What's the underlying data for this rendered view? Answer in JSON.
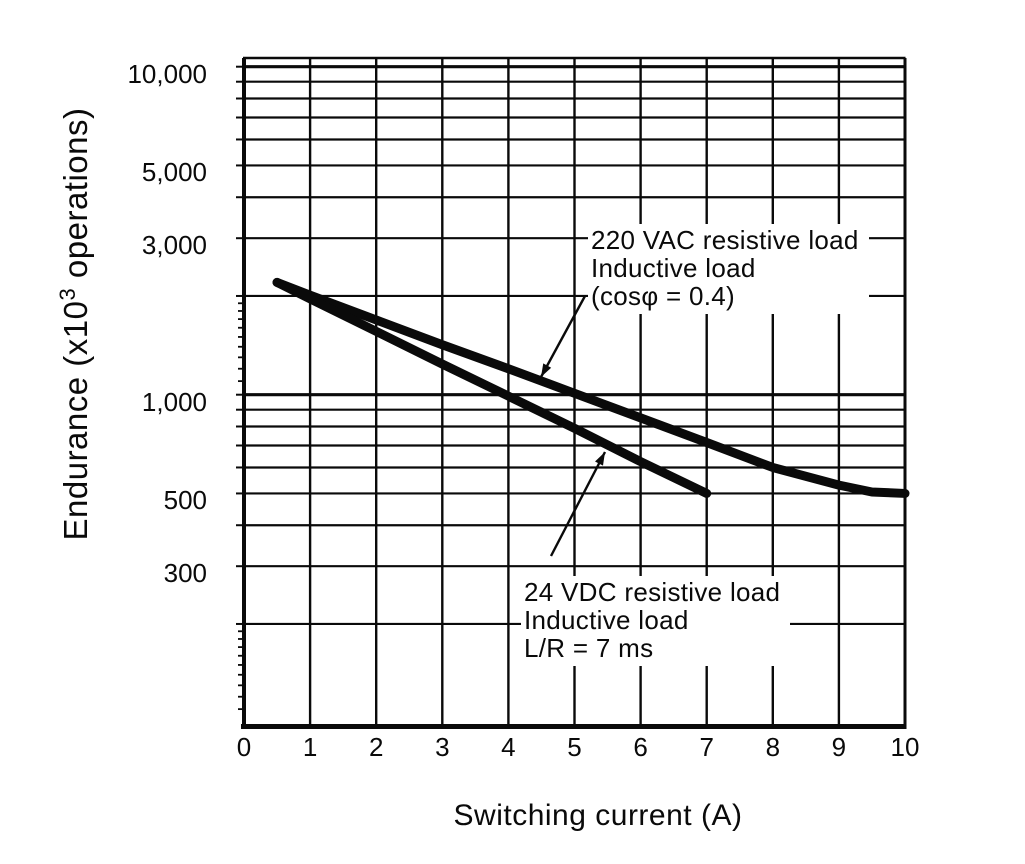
{
  "chart_data": {
    "type": "line",
    "title": "",
    "xlabel": "Switching current (A)",
    "ylabel": "Endurance (x10³ operations)",
    "ylabel_parts": {
      "pre": "Endurance (x10",
      "sup": "3",
      "post": " operations)"
    },
    "x_scale": "linear",
    "y_scale": "log",
    "xlim": [
      0,
      10
    ],
    "ylim": [
      100,
      10000
    ],
    "grid": "full grid, logarithmic minor horizontals, verticals every 1 A",
    "x_ticks": [
      {
        "value": 0,
        "label": "0"
      },
      {
        "value": 1,
        "label": "1"
      },
      {
        "value": 2,
        "label": "2"
      },
      {
        "value": 3,
        "label": "3"
      },
      {
        "value": 4,
        "label": "4"
      },
      {
        "value": 5,
        "label": "5"
      },
      {
        "value": 6,
        "label": "6"
      },
      {
        "value": 7,
        "label": "7"
      },
      {
        "value": 8,
        "label": "8"
      },
      {
        "value": 9,
        "label": "9"
      },
      {
        "value": 10,
        "label": "10"
      }
    ],
    "y_ticks": [
      {
        "value": 10000,
        "label": "10,000"
      },
      {
        "value": 5000,
        "label": "5,000"
      },
      {
        "value": 3000,
        "label": "3,000"
      },
      {
        "value": 1000,
        "label": "1,000"
      },
      {
        "value": 500,
        "label": "500"
      },
      {
        "value": 300,
        "label": "300"
      }
    ],
    "series": [
      {
        "name": "220 VAC resistive load / Inductive load (cosφ = 0.4)",
        "color": "#0a0a0a",
        "points": [
          [
            0.5,
            2200
          ],
          [
            1,
            2010
          ],
          [
            2,
            1690
          ],
          [
            3,
            1420
          ],
          [
            4,
            1200
          ],
          [
            5,
            1010
          ],
          [
            6,
            850
          ],
          [
            7,
            715
          ],
          [
            8,
            600
          ],
          [
            9,
            530
          ],
          [
            9.5,
            505
          ],
          [
            10,
            500
          ]
        ]
      },
      {
        "name": "24 VDC resistive load / Inductive load L/R = 7 ms",
        "color": "#0a0a0a",
        "points": [
          [
            0.5,
            2200
          ],
          [
            1,
            1960
          ],
          [
            2,
            1560
          ],
          [
            3,
            1240
          ],
          [
            4,
            990
          ],
          [
            5,
            790
          ],
          [
            6,
            625
          ],
          [
            7,
            500
          ]
        ]
      }
    ],
    "annotations": [
      {
        "lines": [
          "220 VAC resistive load",
          "Inductive load",
          "(cosφ = 0.4)"
        ]
      },
      {
        "lines": [
          "24 VDC resistive load",
          "Inductive load",
          "L/R = 7 ms"
        ]
      }
    ],
    "colors": {
      "ink": "#0a0a0a",
      "background": "#ffffff"
    },
    "units": {
      "x": "A",
      "y": "×10³ operations"
    }
  }
}
